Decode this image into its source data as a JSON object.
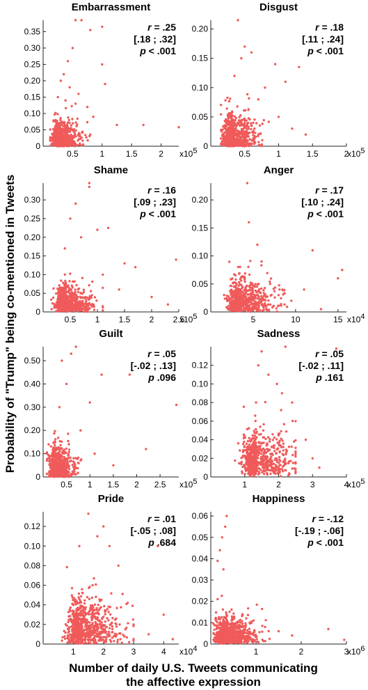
{
  "figure": {
    "ylabel": "Probability of \"Trump\" being co-mentioned in Tweets",
    "xlabel_line1": "Number of daily U.S. Tweets communicating",
    "xlabel_line2": "the affective expression",
    "marker_color": "#f05a5a"
  },
  "chart_data": [
    {
      "type": "scatter",
      "title": "Embarrassment",
      "xlim": [
        0,
        230000
      ],
      "ylim": [
        0,
        0.385
      ],
      "xticks": [
        50000,
        100000,
        150000,
        200000
      ],
      "xtick_labels": [
        "0.5",
        "1",
        "1.5",
        "2"
      ],
      "yticks": [
        0,
        0.05,
        0.1,
        0.15,
        0.2,
        0.25,
        0.3,
        0.35
      ],
      "ytick_labels": [
        "0",
        "0.05",
        "0.10",
        "0.15",
        "0.20",
        "0.25",
        "0.30",
        "0.35"
      ],
      "x_multiplier": "x10",
      "x_exp": "5",
      "stats": {
        "r": ".25",
        "ci": "[.18 ; .32]",
        "p": "< .001"
      },
      "points": [
        [
          55000,
          0.385
        ],
        [
          65000,
          0.385
        ],
        [
          80000,
          0.355
        ],
        [
          100000,
          0.365
        ],
        [
          100000,
          0.25
        ],
        [
          105000,
          0.19
        ],
        [
          125000,
          0.065
        ],
        [
          170000,
          0.065
        ],
        [
          230000,
          0.058
        ],
        [
          50000,
          0.3
        ],
        [
          42000,
          0.26
        ],
        [
          35000,
          0.22
        ],
        [
          30000,
          0.2
        ],
        [
          45000,
          0.18
        ],
        [
          60000,
          0.16
        ],
        [
          75000,
          0.12
        ],
        [
          85000,
          0.09
        ],
        [
          55000,
          0.13
        ],
        [
          25000,
          0.15
        ],
        [
          38000,
          0.14
        ]
      ],
      "cluster": {
        "x_mean": 28000,
        "x_sd": 10000,
        "y_mean": 0.035,
        "y_sd": 0.035,
        "n": 650,
        "x_min": 12000,
        "x_max": 80000
      }
    },
    {
      "type": "scatter",
      "title": "Disgust",
      "xlim": [
        0,
        200000
      ],
      "ylim": [
        0,
        0.215
      ],
      "xticks": [
        50000,
        100000,
        150000,
        200000
      ],
      "xtick_labels": [
        "0.5",
        "1",
        "1.5",
        "2"
      ],
      "yticks": [
        0,
        0.05,
        0.1,
        0.15,
        0.2
      ],
      "ytick_labels": [
        "0",
        "0.05",
        "0.10",
        "0.15",
        "0.20"
      ],
      "x_multiplier": "x10",
      "x_exp": "5",
      "stats": {
        "r": ".18",
        "ci": "[.11 ; .24]",
        "p": "< .001"
      },
      "points": [
        [
          40000,
          0.215
        ],
        [
          130000,
          0.135
        ],
        [
          110000,
          0.11
        ],
        [
          95000,
          0.14
        ],
        [
          80000,
          0.1
        ],
        [
          60000,
          0.16
        ],
        [
          50000,
          0.17
        ],
        [
          45000,
          0.15
        ],
        [
          100000,
          0.05
        ],
        [
          120000,
          0.03
        ],
        [
          140000,
          0.02
        ],
        [
          70000,
          0.08
        ],
        [
          35000,
          0.12
        ]
      ],
      "cluster": {
        "x_mean": 32000,
        "x_sd": 11000,
        "y_mean": 0.025,
        "y_sd": 0.025,
        "n": 650,
        "x_min": 15000,
        "x_max": 90000
      }
    },
    {
      "type": "scatter",
      "title": "Shame",
      "xlim": [
        0,
        250000
      ],
      "ylim": [
        0,
        0.345
      ],
      "xticks": [
        50000,
        100000,
        150000,
        200000,
        250000
      ],
      "xtick_labels": [
        "0.5",
        "1",
        "1.5",
        "2",
        "2.5"
      ],
      "yticks": [
        0,
        0.05,
        0.1,
        0.15,
        0.2,
        0.25,
        0.3
      ],
      "ytick_labels": [
        "0",
        "0.05",
        "0.10",
        "0.15",
        "0.20",
        "0.25",
        "0.30"
      ],
      "x_multiplier": "x10",
      "x_exp": "5",
      "stats": {
        "r": ".16",
        "ci": "[.09 ; .23]",
        "p": "< .001"
      },
      "points": [
        [
          85000,
          0.345
        ],
        [
          85000,
          0.335
        ],
        [
          60000,
          0.29
        ],
        [
          100000,
          0.22
        ],
        [
          120000,
          0.225
        ],
        [
          150000,
          0.13
        ],
        [
          170000,
          0.12
        ],
        [
          245000,
          0.14
        ],
        [
          200000,
          0.04
        ],
        [
          230000,
          0.02
        ],
        [
          140000,
          0.06
        ],
        [
          110000,
          0.1
        ],
        [
          70000,
          0.2
        ],
        [
          50000,
          0.25
        ],
        [
          40000,
          0.17
        ]
      ],
      "cluster": {
        "x_mean": 42000,
        "x_sd": 15000,
        "y_mean": 0.035,
        "y_sd": 0.03,
        "n": 650,
        "x_min": 15000,
        "x_max": 110000
      }
    },
    {
      "type": "scatter",
      "title": "Anger",
      "xlim": [
        0,
        160000
      ],
      "ylim": [
        0,
        0.23
      ],
      "xticks": [
        50000,
        100000,
        150000
      ],
      "xtick_labels": [
        "5",
        "10",
        "15"
      ],
      "yticks": [
        0,
        0.05,
        0.1,
        0.15,
        0.2
      ],
      "ytick_labels": [
        "0",
        "0.05",
        "0.10",
        "0.15",
        "0.20"
      ],
      "x_multiplier": "x10",
      "x_exp": "4",
      "stats": {
        "r": ".17",
        "ci": "[.10 ; .24]",
        "p": "< .001"
      },
      "points": [
        [
          43000,
          0.23
        ],
        [
          45000,
          0.16
        ],
        [
          120000,
          0.11
        ],
        [
          155000,
          0.075
        ],
        [
          150000,
          0.06
        ],
        [
          110000,
          0.04
        ],
        [
          95000,
          0.02
        ],
        [
          130000,
          0.005
        ],
        [
          80000,
          0.03
        ],
        [
          70000,
          0.05
        ],
        [
          60000,
          0.09
        ],
        [
          55000,
          0.12
        ]
      ],
      "cluster": {
        "x_mean": 36000,
        "x_sd": 12000,
        "y_mean": 0.03,
        "y_sd": 0.028,
        "n": 650,
        "x_min": 15000,
        "x_max": 90000
      }
    },
    {
      "type": "scatter",
      "title": "Guilt",
      "xlim": [
        0,
        290000
      ],
      "ylim": [
        0,
        0.56
      ],
      "xticks": [
        50000,
        100000,
        150000,
        200000,
        250000
      ],
      "xtick_labels": [
        "0.5",
        "1",
        "1.5",
        "2",
        "2.5"
      ],
      "yticks": [
        0,
        0.1,
        0.2,
        0.3,
        0.4,
        0.5
      ],
      "ytick_labels": [
        "0",
        "0.10",
        "0.20",
        "0.30",
        "0.40",
        "0.50"
      ],
      "x_multiplier": "x10",
      "x_exp": "5",
      "stats": {
        "r": ".05",
        "ci": "[-.02 ; .13]",
        "p": ".096"
      },
      "points": [
        [
          70000,
          0.56
        ],
        [
          40000,
          0.5
        ],
        [
          60000,
          0.53
        ],
        [
          125000,
          0.44
        ],
        [
          185000,
          0.44
        ],
        [
          100000,
          0.32
        ],
        [
          220000,
          0.12
        ],
        [
          285000,
          0.31
        ],
        [
          50000,
          0.4
        ],
        [
          80000,
          0.2
        ],
        [
          110000,
          0.1
        ],
        [
          150000,
          0.05
        ],
        [
          35000,
          0.3
        ]
      ],
      "cluster": {
        "x_mean": 28000,
        "x_sd": 12000,
        "y_mean": 0.06,
        "y_sd": 0.06,
        "n": 600,
        "x_min": 8000,
        "x_max": 90000
      }
    },
    {
      "type": "scatter",
      "title": "Sadness",
      "xlim": [
        0,
        400000
      ],
      "ylim": [
        0,
        0.14
      ],
      "xticks": [
        100000,
        200000,
        300000,
        400000
      ],
      "xtick_labels": [
        "1",
        "2",
        "3",
        "4"
      ],
      "yticks": [
        0,
        0.02,
        0.04,
        0.06,
        0.08,
        0.1,
        0.12
      ],
      "ytick_labels": [
        "0",
        "0.02",
        "0.04",
        "0.06",
        "0.08",
        "0.10",
        "0.12"
      ],
      "x_multiplier": "x10",
      "x_exp": "5",
      "stats": {
        "r": ".05",
        "ci": "[-.02 ; .11]",
        "p": ".161"
      },
      "points": [
        [
          150000,
          0.135
        ],
        [
          220000,
          0.14
        ],
        [
          370000,
          0.138
        ],
        [
          195000,
          0.1
        ],
        [
          240000,
          0.08
        ],
        [
          300000,
          0.02
        ],
        [
          320000,
          0.01
        ],
        [
          280000,
          0.04
        ],
        [
          250000,
          0.06
        ],
        [
          210000,
          0.09
        ],
        [
          170000,
          0.11
        ],
        [
          140000,
          0.12
        ]
      ],
      "cluster": {
        "x_mean": 135000,
        "x_sd": 35000,
        "y_mean": 0.03,
        "y_sd": 0.02,
        "n": 650,
        "x_min": 70000,
        "x_max": 250000
      }
    },
    {
      "type": "scatter",
      "title": "Pride",
      "xlim": [
        0,
        45000
      ],
      "ylim": [
        0,
        0.135
      ],
      "xticks": [
        10000,
        20000,
        30000,
        40000
      ],
      "xtick_labels": [
        "1",
        "2",
        "3",
        "4"
      ],
      "yticks": [
        0,
        0.02,
        0.04,
        0.06,
        0.08,
        0.1,
        0.12
      ],
      "ytick_labels": [
        "0",
        "0.02",
        "0.04",
        "0.06",
        "0.08",
        "0.10",
        "0.12"
      ],
      "x_multiplier": "x10",
      "x_exp": "4",
      "stats": {
        "r": ".01",
        "ci": "[-.05 ; .08]",
        "p": ".684"
      },
      "points": [
        [
          15000,
          0.133
        ],
        [
          20000,
          0.12
        ],
        [
          38000,
          0.1
        ],
        [
          40000,
          0.03
        ],
        [
          43000,
          0.005
        ],
        [
          35000,
          0.01
        ],
        [
          30000,
          0.02
        ],
        [
          25000,
          0.08
        ],
        [
          22000,
          0.1
        ],
        [
          18000,
          0.11
        ],
        [
          12000,
          0.1
        ]
      ],
      "cluster": {
        "x_mean": 13000,
        "x_sd": 4000,
        "y_mean": 0.025,
        "y_sd": 0.022,
        "n": 700,
        "x_min": 4000,
        "x_max": 30000
      }
    },
    {
      "type": "scatter",
      "title": "Happiness",
      "xlim": [
        0,
        3000000
      ],
      "ylim": [
        0,
        0.062
      ],
      "xticks": [
        1000000,
        2000000,
        3000000
      ],
      "xtick_labels": [
        "1",
        "2",
        "3"
      ],
      "yticks": [
        0,
        0.01,
        0.02,
        0.03,
        0.04,
        0.05,
        0.06
      ],
      "ytick_labels": [
        "0",
        "0.01",
        "0.02",
        "0.03",
        "0.04",
        "0.05",
        "0.06"
      ],
      "x_multiplier": "x10",
      "x_exp": "6",
      "stats": {
        "r": "-.12",
        "ci": "[-.19 ; -.06]",
        "p": "< .001"
      },
      "points": [
        [
          350000,
          0.06
        ],
        [
          320000,
          0.055
        ],
        [
          250000,
          0.05
        ],
        [
          200000,
          0.044
        ],
        [
          150000,
          0.039
        ],
        [
          280000,
          0.035
        ],
        [
          2600000,
          0.007
        ],
        [
          2950000,
          0.002
        ],
        [
          1800000,
          0.004
        ],
        [
          1500000,
          0.006
        ],
        [
          1200000,
          0.008
        ],
        [
          900000,
          0.01
        ],
        [
          700000,
          0.014
        ]
      ],
      "cluster": {
        "x_mean": 350000,
        "x_sd": 200000,
        "y_mean": 0.007,
        "y_sd": 0.006,
        "n": 650,
        "x_min": 60000,
        "x_max": 1300000
      }
    }
  ]
}
